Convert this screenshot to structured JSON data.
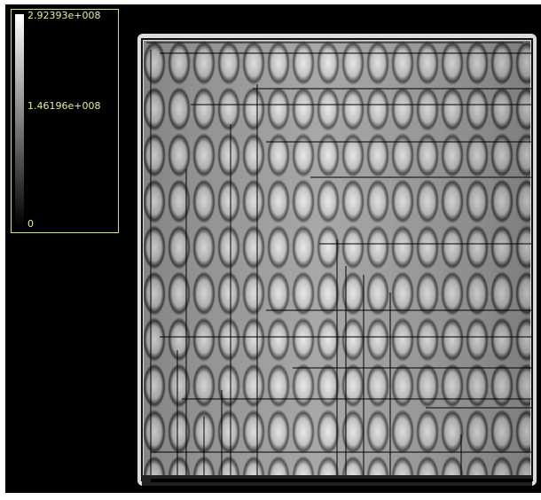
{
  "colorbar": {
    "max_label": "2.92393e+008",
    "mid_label": "1.46196e+008",
    "min_label": "0"
  }
}
